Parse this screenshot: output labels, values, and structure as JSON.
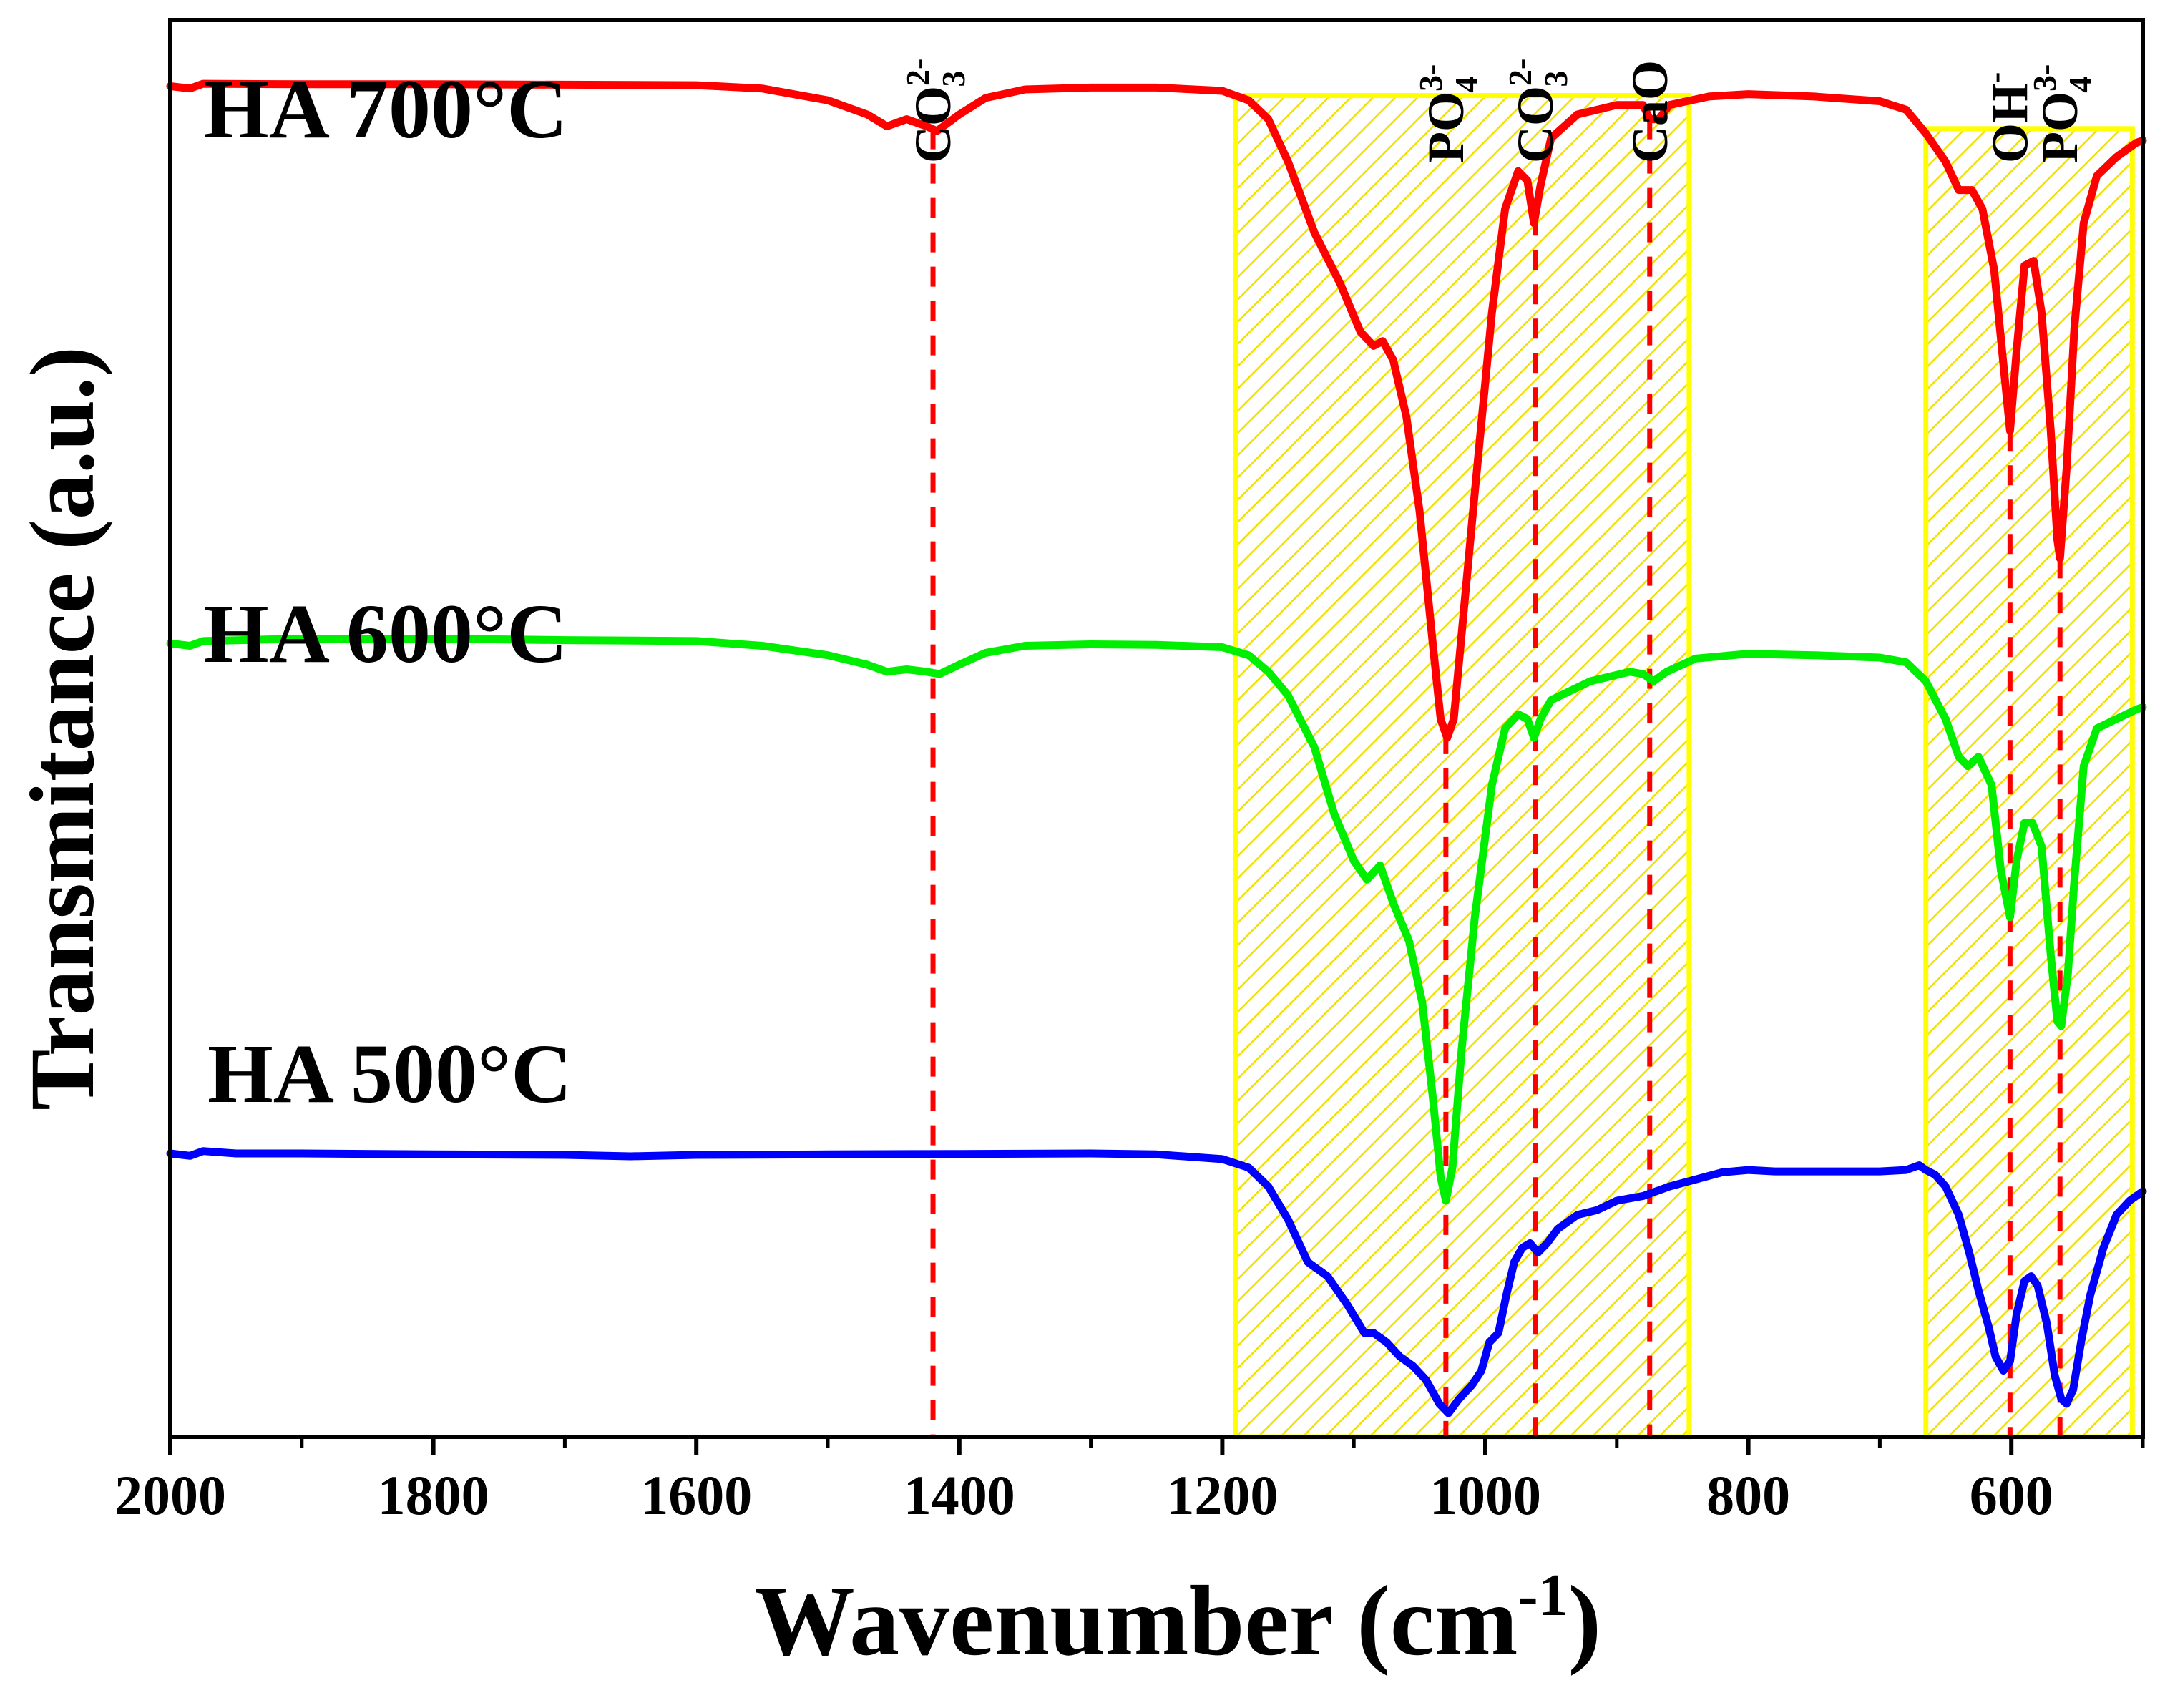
{
  "chart_data": {
    "type": "line",
    "title": "",
    "xlabel": "Wavenumber (cm",
    "xlabel_sup": "-1",
    "xlabel_close": ")",
    "ylabel": "Transmitance (a.u.)",
    "xlim": [
      2000,
      500
    ],
    "ylim": [
      0,
      3
    ],
    "xticks": [
      2000,
      1800,
      1600,
      1400,
      1200,
      1000,
      800,
      600
    ],
    "xtick_labels": [
      "2000",
      "1800",
      "1600",
      "1400",
      "1200",
      "1000",
      "800",
      "600"
    ],
    "minor_xticks": [
      1900,
      1700,
      1500,
      1300,
      1100,
      900,
      700,
      500
    ],
    "y_ticks_shown": false,
    "shaded_regions": [
      {
        "x_start": 1190,
        "x_end": 845,
        "y_top": 2.84,
        "color": "#ffff00"
      },
      {
        "x_start": 665,
        "x_end": 508,
        "y_top": 2.77,
        "color": "#ffff00"
      }
    ],
    "peak_markers": [
      {
        "x": 1420,
        "label_main": "CO",
        "label_sup": "2-",
        "label_sub": "3"
      },
      {
        "x": 1030,
        "label_main": "PO",
        "label_sup": "3-",
        "label_sub": "4"
      },
      {
        "x": 962,
        "label_main": "CO",
        "label_sup": "2-",
        "label_sub": "3"
      },
      {
        "x": 875,
        "label_main": "CaO",
        "label_sup": "",
        "label_sub": ""
      },
      {
        "x": 601,
        "label_main": "OH",
        "label_sup": "-",
        "label_sub": ""
      },
      {
        "x": 563,
        "label_main": "PO",
        "label_sup": "3-",
        "label_sub": "4"
      }
    ],
    "marker_line_color": "#ff0000",
    "series": [
      {
        "name": "HA 700°C",
        "color": "#ff0000",
        "points": [
          [
            2000,
            2.86
          ],
          [
            1985,
            2.855
          ],
          [
            1975,
            2.865
          ],
          [
            1900,
            2.864
          ],
          [
            1800,
            2.864
          ],
          [
            1700,
            2.863
          ],
          [
            1600,
            2.862
          ],
          [
            1550,
            2.855
          ],
          [
            1500,
            2.83
          ],
          [
            1470,
            2.8
          ],
          [
            1455,
            2.775
          ],
          [
            1440,
            2.79
          ],
          [
            1425,
            2.775
          ],
          [
            1417,
            2.765
          ],
          [
            1400,
            2.8
          ],
          [
            1380,
            2.835
          ],
          [
            1350,
            2.853
          ],
          [
            1300,
            2.857
          ],
          [
            1250,
            2.857
          ],
          [
            1200,
            2.85
          ],
          [
            1180,
            2.83
          ],
          [
            1165,
            2.79
          ],
          [
            1150,
            2.7
          ],
          [
            1130,
            2.55
          ],
          [
            1110,
            2.44
          ],
          [
            1095,
            2.34
          ],
          [
            1085,
            2.31
          ],
          [
            1078,
            2.32
          ],
          [
            1070,
            2.28
          ],
          [
            1060,
            2.16
          ],
          [
            1050,
            1.96
          ],
          [
            1040,
            1.68
          ],
          [
            1034,
            1.52
          ],
          [
            1029,
            1.48
          ],
          [
            1024,
            1.52
          ],
          [
            1018,
            1.7
          ],
          [
            1008,
            2.0
          ],
          [
            995,
            2.38
          ],
          [
            985,
            2.6
          ],
          [
            975,
            2.68
          ],
          [
            968,
            2.66
          ],
          [
            963,
            2.57
          ],
          [
            958,
            2.65
          ],
          [
            950,
            2.75
          ],
          [
            930,
            2.8
          ],
          [
            900,
            2.82
          ],
          [
            880,
            2.82
          ],
          [
            875,
            2.79
          ],
          [
            868,
            2.79
          ],
          [
            860,
            2.82
          ],
          [
            830,
            2.838
          ],
          [
            800,
            2.843
          ],
          [
            750,
            2.838
          ],
          [
            700,
            2.828
          ],
          [
            680,
            2.81
          ],
          [
            665,
            2.76
          ],
          [
            650,
            2.7
          ],
          [
            640,
            2.64
          ],
          [
            630,
            2.64
          ],
          [
            622,
            2.6
          ],
          [
            613,
            2.47
          ],
          [
            606,
            2.27
          ],
          [
            601,
            2.13
          ],
          [
            596,
            2.3
          ],
          [
            590,
            2.48
          ],
          [
            583,
            2.49
          ],
          [
            577,
            2.38
          ],
          [
            570,
            2.13
          ],
          [
            565,
            1.9
          ],
          [
            563,
            1.86
          ],
          [
            558,
            2.05
          ],
          [
            552,
            2.35
          ],
          [
            545,
            2.57
          ],
          [
            535,
            2.67
          ],
          [
            520,
            2.71
          ],
          [
            505,
            2.74
          ],
          [
            500,
            2.745
          ]
        ]
      },
      {
        "name": "HA 600°C",
        "color": "#00ee00",
        "points": [
          [
            2000,
            1.68
          ],
          [
            1985,
            1.675
          ],
          [
            1975,
            1.685
          ],
          [
            1900,
            1.69
          ],
          [
            1800,
            1.69
          ],
          [
            1700,
            1.687
          ],
          [
            1600,
            1.685
          ],
          [
            1550,
            1.675
          ],
          [
            1500,
            1.655
          ],
          [
            1470,
            1.635
          ],
          [
            1455,
            1.62
          ],
          [
            1440,
            1.625
          ],
          [
            1425,
            1.62
          ],
          [
            1415,
            1.615
          ],
          [
            1400,
            1.635
          ],
          [
            1380,
            1.66
          ],
          [
            1350,
            1.675
          ],
          [
            1300,
            1.678
          ],
          [
            1250,
            1.677
          ],
          [
            1200,
            1.672
          ],
          [
            1180,
            1.655
          ],
          [
            1165,
            1.62
          ],
          [
            1150,
            1.57
          ],
          [
            1130,
            1.46
          ],
          [
            1115,
            1.32
          ],
          [
            1100,
            1.22
          ],
          [
            1090,
            1.18
          ],
          [
            1080,
            1.21
          ],
          [
            1070,
            1.13
          ],
          [
            1058,
            1.05
          ],
          [
            1048,
            0.92
          ],
          [
            1040,
            0.72
          ],
          [
            1034,
            0.55
          ],
          [
            1030,
            0.5
          ],
          [
            1025,
            0.57
          ],
          [
            1018,
            0.82
          ],
          [
            1008,
            1.1
          ],
          [
            995,
            1.38
          ],
          [
            985,
            1.5
          ],
          [
            975,
            1.53
          ],
          [
            968,
            1.52
          ],
          [
            963,
            1.48
          ],
          [
            958,
            1.52
          ],
          [
            950,
            1.56
          ],
          [
            920,
            1.6
          ],
          [
            890,
            1.62
          ],
          [
            880,
            1.615
          ],
          [
            872,
            1.6
          ],
          [
            862,
            1.62
          ],
          [
            840,
            1.648
          ],
          [
            800,
            1.658
          ],
          [
            750,
            1.655
          ],
          [
            700,
            1.65
          ],
          [
            680,
            1.64
          ],
          [
            665,
            1.6
          ],
          [
            650,
            1.52
          ],
          [
            640,
            1.44
          ],
          [
            633,
            1.42
          ],
          [
            625,
            1.44
          ],
          [
            615,
            1.38
          ],
          [
            608,
            1.2
          ],
          [
            601,
            1.1
          ],
          [
            596,
            1.22
          ],
          [
            590,
            1.3
          ],
          [
            584,
            1.3
          ],
          [
            577,
            1.25
          ],
          [
            570,
            1.02
          ],
          [
            565,
            0.88
          ],
          [
            562,
            0.87
          ],
          [
            557,
            0.98
          ],
          [
            552,
            1.18
          ],
          [
            545,
            1.42
          ],
          [
            535,
            1.5
          ],
          [
            520,
            1.52
          ],
          [
            505,
            1.54
          ],
          [
            500,
            1.545
          ]
        ]
      },
      {
        "name": "HA 500°C",
        "color": "#0000ff",
        "points": [
          [
            2000,
            0.6
          ],
          [
            1985,
            0.595
          ],
          [
            1975,
            0.605
          ],
          [
            1950,
            0.6
          ],
          [
            1900,
            0.6
          ],
          [
            1800,
            0.598
          ],
          [
            1700,
            0.597
          ],
          [
            1650,
            0.594
          ],
          [
            1600,
            0.597
          ],
          [
            1500,
            0.598
          ],
          [
            1400,
            0.599
          ],
          [
            1300,
            0.6
          ],
          [
            1250,
            0.598
          ],
          [
            1200,
            0.588
          ],
          [
            1180,
            0.57
          ],
          [
            1165,
            0.53
          ],
          [
            1150,
            0.46
          ],
          [
            1135,
            0.37
          ],
          [
            1120,
            0.34
          ],
          [
            1105,
            0.28
          ],
          [
            1092,
            0.22
          ],
          [
            1085,
            0.22
          ],
          [
            1075,
            0.2
          ],
          [
            1065,
            0.17
          ],
          [
            1055,
            0.15
          ],
          [
            1045,
            0.12
          ],
          [
            1035,
            0.07
          ],
          [
            1028,
            0.05
          ],
          [
            1020,
            0.08
          ],
          [
            1010,
            0.11
          ],
          [
            1003,
            0.14
          ],
          [
            997,
            0.2
          ],
          [
            990,
            0.22
          ],
          [
            984,
            0.3
          ],
          [
            978,
            0.37
          ],
          [
            972,
            0.4
          ],
          [
            966,
            0.41
          ],
          [
            960,
            0.39
          ],
          [
            953,
            0.41
          ],
          [
            945,
            0.44
          ],
          [
            930,
            0.47
          ],
          [
            915,
            0.48
          ],
          [
            900,
            0.5
          ],
          [
            880,
            0.51
          ],
          [
            860,
            0.53
          ],
          [
            840,
            0.545
          ],
          [
            820,
            0.56
          ],
          [
            800,
            0.565
          ],
          [
            780,
            0.562
          ],
          [
            750,
            0.562
          ],
          [
            720,
            0.562
          ],
          [
            700,
            0.562
          ],
          [
            680,
            0.565
          ],
          [
            670,
            0.575
          ],
          [
            665,
            0.565
          ],
          [
            658,
            0.555
          ],
          [
            650,
            0.53
          ],
          [
            640,
            0.47
          ],
          [
            632,
            0.39
          ],
          [
            625,
            0.31
          ],
          [
            617,
            0.23
          ],
          [
            612,
            0.17
          ],
          [
            606,
            0.14
          ],
          [
            601,
            0.16
          ],
          [
            596,
            0.26
          ],
          [
            590,
            0.33
          ],
          [
            585,
            0.34
          ],
          [
            580,
            0.32
          ],
          [
            573,
            0.24
          ],
          [
            567,
            0.13
          ],
          [
            562,
            0.08
          ],
          [
            558,
            0.07
          ],
          [
            553,
            0.1
          ],
          [
            547,
            0.2
          ],
          [
            540,
            0.3
          ],
          [
            530,
            0.4
          ],
          [
            520,
            0.47
          ],
          [
            510,
            0.5
          ],
          [
            500,
            0.52
          ]
        ]
      }
    ]
  }
}
